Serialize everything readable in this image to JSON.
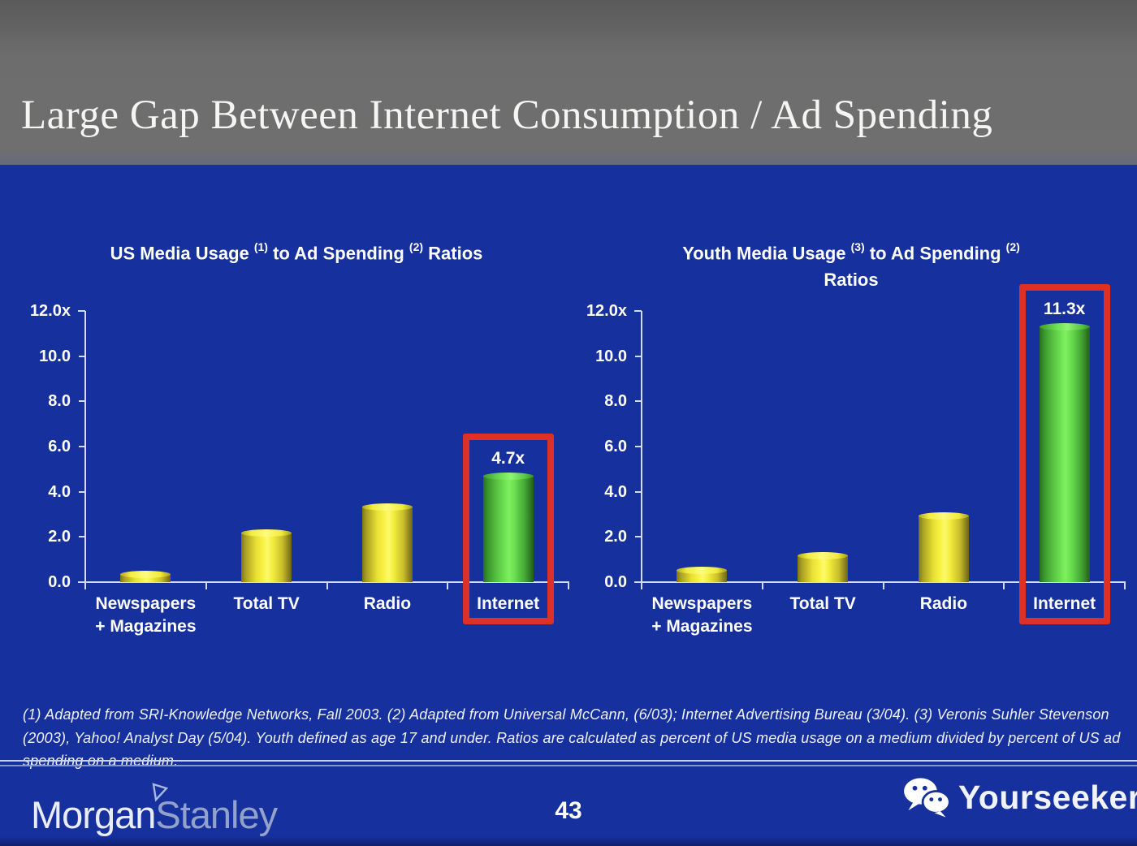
{
  "header": {
    "title": "Large Gap Between Internet Consumption / Ad Spending"
  },
  "chart_data": [
    {
      "type": "bar",
      "title": "US Media Usage (1) to Ad Spending (2) Ratios",
      "title_segments": [
        {
          "text": "US Media Usage "
        },
        {
          "sup": "(1)"
        },
        {
          "text": " to Ad Spending "
        },
        {
          "sup": "(2)"
        },
        {
          "text": " Ratios"
        }
      ],
      "categories": [
        "Newspapers\n+ Magazines",
        "Total TV",
        "Radio",
        "Internet"
      ],
      "values": [
        0.35,
        2.2,
        3.35,
        4.7
      ],
      "bar_colors": [
        "yellow",
        "yellow",
        "yellow",
        "green"
      ],
      "highlight": {
        "index": 3,
        "label": "4.7x",
        "boxed": true
      },
      "yticks": [
        "12.0x",
        "10.0",
        "8.0",
        "6.0",
        "4.0",
        "2.0",
        "0.0"
      ],
      "ylim": [
        0,
        12
      ],
      "grid": false,
      "legend": "none"
    },
    {
      "type": "bar",
      "title": "Youth Media Usage (3) to Ad Spending (2) Ratios",
      "title_segments": [
        {
          "text": "Youth Media Usage "
        },
        {
          "sup": "(3)"
        },
        {
          "text": " to Ad Spending "
        },
        {
          "sup": "(2)"
        },
        {
          "text": "\nRatios"
        }
      ],
      "categories": [
        "Newspapers\n+ Magazines",
        "Total TV",
        "Radio",
        "Internet"
      ],
      "values": [
        0.55,
        1.2,
        2.95,
        11.3
      ],
      "bar_colors": [
        "yellow",
        "yellow",
        "yellow",
        "green"
      ],
      "highlight": {
        "index": 3,
        "label": "11.3x",
        "boxed": true
      },
      "yticks": [
        "12.0x",
        "10.0",
        "8.0",
        "6.0",
        "4.0",
        "2.0",
        "0.0"
      ],
      "ylim": [
        0,
        12
      ],
      "grid": false,
      "legend": "none"
    }
  ],
  "footnote": {
    "text": "(1) Adapted from SRI-Knowledge Networks, Fall 2003.  (2) Adapted from Universal McCann, (6/03); Internet Advertising Bureau (3/04). (3) Veronis Suhler Stevenson (2003), Yahoo! Analyst Day (5/04).  Youth defined as age 17 and under.  Ratios are calculated as percent of US media usage on a medium divided by percent of US ad spending on a medium."
  },
  "footer": {
    "morgan": "Morgan",
    "stanley": "Stanley",
    "page_number": "43",
    "brand": "Yourseeker"
  },
  "icons": {
    "wechat": "wechat-icon",
    "ms_triangle": "morgan-stanley-triangle-icon"
  },
  "colors": {
    "slide_bg": "#16309e",
    "header_bg": "#6d6d6d",
    "accent_red": "#dd3027",
    "bar_yellow": "#f3ee3e",
    "bar_green": "#6adf50",
    "axis": "#d2dbf4",
    "text": "#ffffff"
  }
}
